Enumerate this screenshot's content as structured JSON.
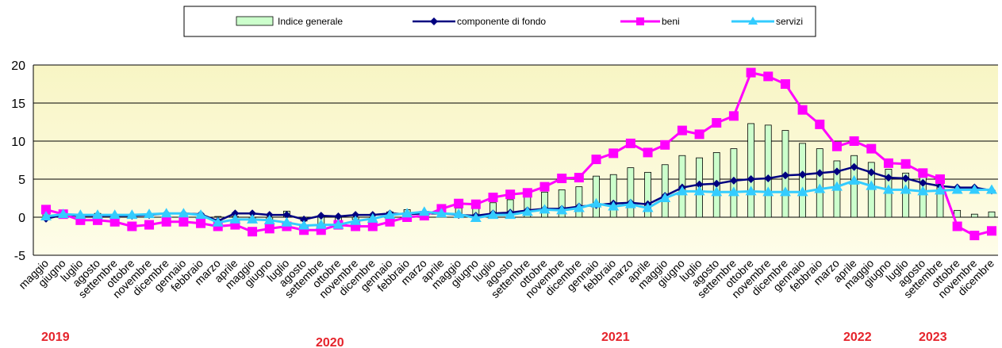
{
  "chart_data": {
    "type": "bar",
    "categories": [
      "maggio",
      "giugno",
      "luglio",
      "agosto",
      "settembre",
      "ottobre",
      "novembre",
      "dicembre",
      "gennaio",
      "febbraio",
      "marzo",
      "aprile",
      "maggio",
      "giugno",
      "luglio",
      "agosto",
      "settembre",
      "ottobre",
      "novembre",
      "dicembre",
      "gennaio",
      "febbraio",
      "marzo",
      "aprile",
      "maggio",
      "giugno",
      "luglio",
      "agosto",
      "settembre",
      "ottobre",
      "novembre",
      "dicembre",
      "gennaio",
      "febbraio",
      "marzo",
      "aprile",
      "maggio",
      "giugno",
      "luglio",
      "agosto",
      "settembre",
      "ottobre",
      "novembre",
      "dicembre",
      "gennaio",
      "febbraio",
      "marzo",
      "aprile",
      "maggio",
      "giugno",
      "luglio",
      "agosto",
      "settembre",
      "ottobre",
      "novembre",
      "dicembre"
    ],
    "year_labels": [
      "2019",
      "2020",
      "2021",
      "2022",
      "2023"
    ],
    "year_label_color": "#e5232b",
    "ylim": [
      -5,
      20
    ],
    "yticks": [
      20,
      15,
      10,
      5,
      0,
      -5
    ],
    "grid": true,
    "legend_position": "top",
    "series": [
      {
        "name": "Indice generale",
        "type": "bar",
        "color": "#ccffcc",
        "values": [
          0.8,
          0.7,
          0.3,
          0.5,
          0.2,
          0.2,
          0.2,
          0.5,
          0.4,
          0.2,
          0.1,
          0.1,
          -0.3,
          -0.4,
          0.8,
          -0.5,
          -1.0,
          -0.6,
          -0.3,
          -0.3,
          0.7,
          1.0,
          0.6,
          1.0,
          1.2,
          1.2,
          1.9,
          2.3,
          2.8,
          3.3,
          3.6,
          4.0,
          5.4,
          5.6,
          6.5,
          5.9,
          6.9,
          8.1,
          7.8,
          8.5,
          9.0,
          12.3,
          12.1,
          11.4,
          9.7,
          9.0,
          7.4,
          8.1,
          7.2,
          6.3,
          5.8,
          5.3,
          5.0,
          0.9,
          0.4,
          0.7
        ]
      },
      {
        "name": "componente di fondo",
        "type": "line",
        "marker": "diamond",
        "color": "#000080",
        "values": [
          -0.2,
          0.3,
          0.2,
          0.2,
          0.2,
          0.2,
          0.3,
          0.5,
          0.5,
          0.4,
          -0.5,
          0.5,
          0.5,
          0.3,
          0.3,
          -0.3,
          0.2,
          0.1,
          0.3,
          0.3,
          0.5,
          0.4,
          0.5,
          0.5,
          0.3,
          0.2,
          0.5,
          0.6,
          0.9,
          1.1,
          1.1,
          1.4,
          1.6,
          1.8,
          1.9,
          1.7,
          2.8,
          3.9,
          4.3,
          4.4,
          4.8,
          5.0,
          5.1,
          5.5,
          5.6,
          5.8,
          6.0,
          6.6,
          5.9,
          5.2,
          5.1,
          4.5,
          4.1,
          3.9,
          3.9,
          3.5
        ]
      },
      {
        "name": "beni",
        "type": "line",
        "marker": "square",
        "color": "#ff00ff",
        "values": [
          1.0,
          0.4,
          -0.4,
          -0.4,
          -0.6,
          -1.2,
          -1.0,
          -0.6,
          -0.6,
          -0.8,
          -1.2,
          -1.0,
          -1.9,
          -1.5,
          -1.2,
          -1.7,
          -1.7,
          -1.0,
          -1.2,
          -1.2,
          -0.6,
          0.0,
          0.2,
          1.1,
          1.8,
          1.7,
          2.6,
          3.0,
          3.2,
          4.0,
          5.1,
          5.2,
          7.6,
          8.4,
          9.7,
          8.5,
          9.5,
          11.4,
          10.9,
          12.4,
          13.3,
          19.0,
          18.5,
          17.5,
          14.1,
          12.2,
          9.3,
          10.0,
          9.0,
          7.1,
          7.0,
          5.8,
          5.0,
          -1.2,
          -2.4,
          -1.8
        ]
      },
      {
        "name": "servizi",
        "type": "line",
        "marker": "triangle",
        "color": "#33ccff",
        "values": [
          0.1,
          0.4,
          0.3,
          0.3,
          0.3,
          0.3,
          0.4,
          0.5,
          0.5,
          0.3,
          -0.7,
          -0.3,
          -0.3,
          -0.4,
          -0.7,
          -1.1,
          -1.0,
          -1.0,
          -0.5,
          -0.2,
          0.3,
          0.5,
          0.7,
          0.5,
          0.4,
          -0.1,
          0.3,
          0.3,
          0.7,
          1.0,
          0.9,
          1.2,
          1.8,
          1.4,
          1.7,
          1.2,
          2.5,
          3.4,
          3.4,
          3.3,
          3.3,
          3.4,
          3.3,
          3.3,
          3.3,
          3.7,
          4.0,
          4.8,
          4.1,
          3.6,
          3.6,
          3.4,
          3.5,
          3.6,
          3.6,
          3.6
        ]
      }
    ]
  }
}
